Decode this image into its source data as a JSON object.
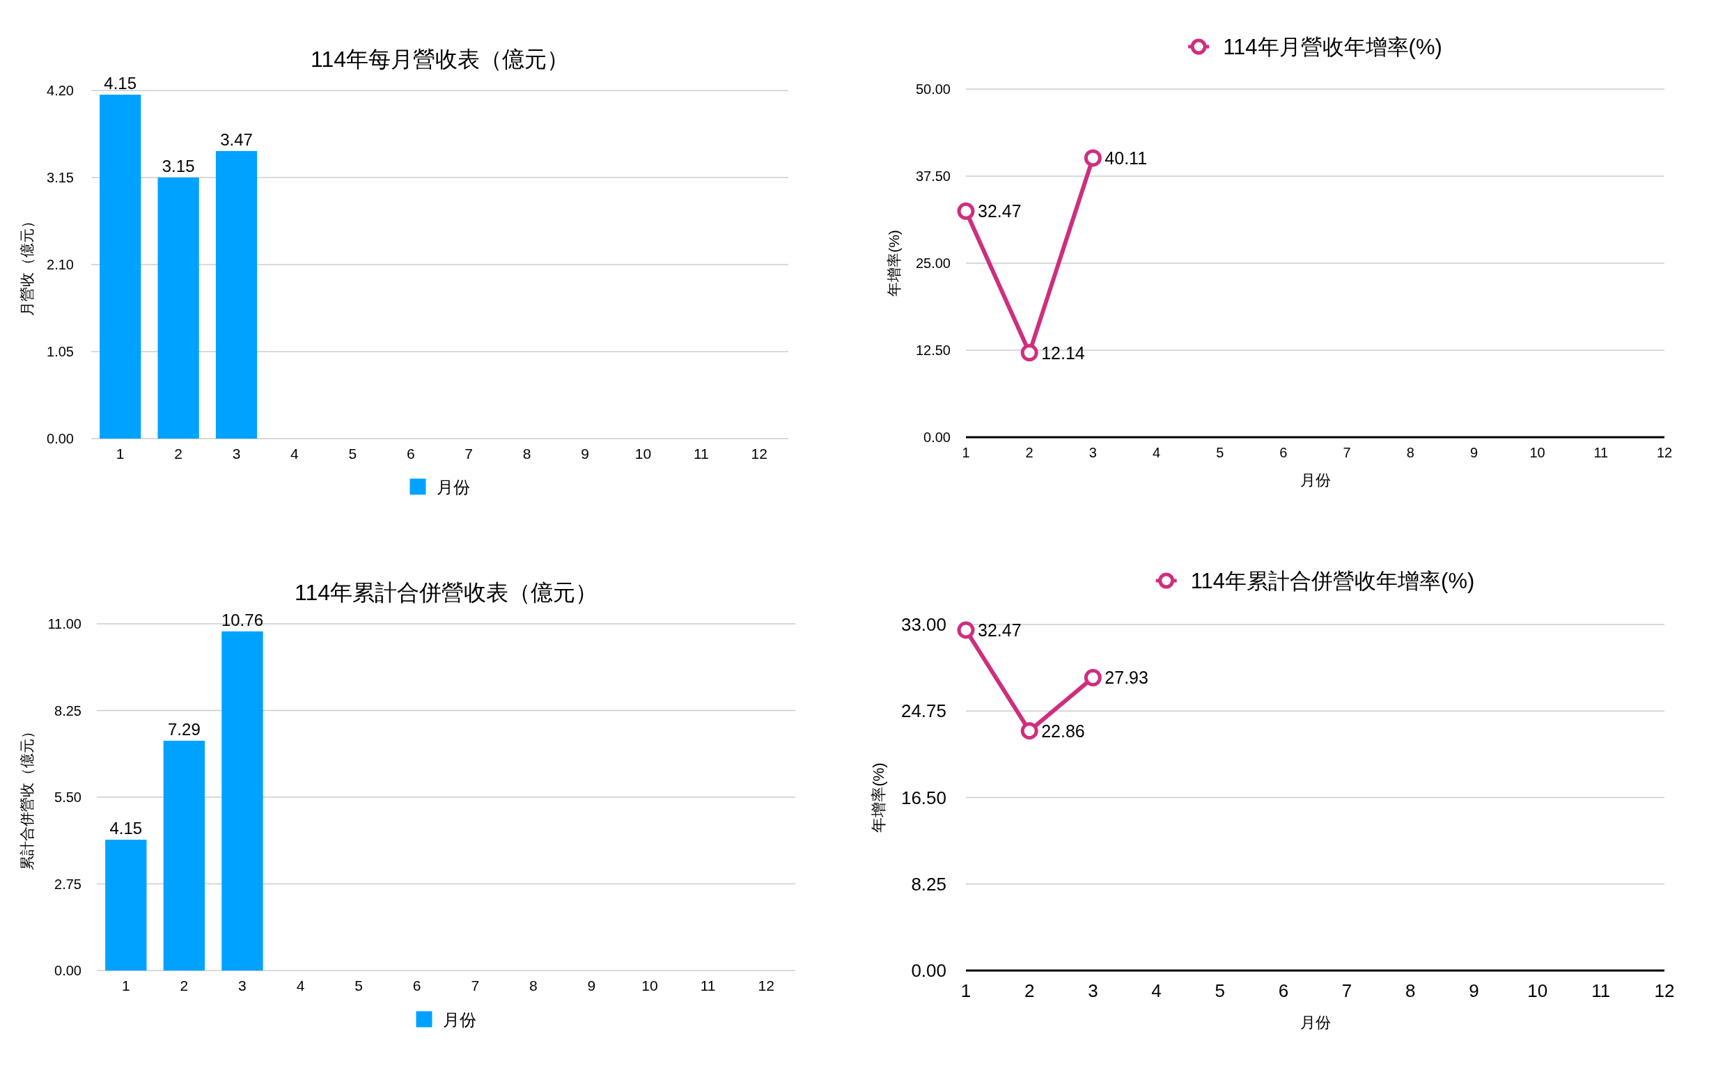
{
  "chart_data": [
    {
      "type": "bar",
      "title": "114年每月營收表（億元）",
      "ylabel": "月營收（億元）",
      "x": [
        1,
        2,
        3
      ],
      "series": [
        {
          "name": "月份",
          "color": "#00a2ff",
          "values": [
            4.15,
            3.15,
            3.47
          ]
        }
      ],
      "xlim": [
        0.5,
        12.5
      ],
      "xticks": [
        1,
        2,
        3,
        4,
        5,
        6,
        7,
        8,
        9,
        10,
        11,
        12
      ],
      "ylim": [
        0,
        4.2
      ],
      "yticks": [
        {
          "value": 0,
          "label": "0.00"
        },
        1.05,
        {
          "value": 2.1,
          "label": "2.10"
        },
        3.15,
        {
          "value": 4.2,
          "label": "4.20"
        }
      ],
      "grid": "y",
      "legend": "bottom",
      "data_labels": true
    },
    {
      "type": "line",
      "xlabel": "月份",
      "ylabel": "年增率(%)",
      "x": [
        1,
        2,
        3
      ],
      "series": [
        {
          "name": "114年月營收年增率(%)",
          "color": "#cf2e7e",
          "values": [
            32.47,
            12.14,
            40.11
          ]
        }
      ],
      "xlim": [
        1,
        12
      ],
      "xticks": [
        1,
        2,
        3,
        4,
        5,
        6,
        7,
        8,
        9,
        10,
        11,
        12
      ],
      "ylim": [
        0,
        50
      ],
      "yticks": [
        {
          "value": 0,
          "label": "0.00"
        },
        {
          "value": 12.5,
          "label": "12.50"
        },
        {
          "value": 25,
          "label": "25.00"
        },
        {
          "value": 37.5,
          "label": "37.50"
        },
        {
          "value": 50,
          "label": "50.00"
        }
      ],
      "grid": "y",
      "legend": "top",
      "marker": "circle",
      "data_labels": true
    },
    {
      "type": "bar",
      "title": "114年累計合併營收表（億元）",
      "ylabel": "累計合併營收（億元）",
      "x": [
        1,
        2,
        3
      ],
      "series": [
        {
          "name": "月份",
          "color": "#00a2ff",
          "values": [
            4.15,
            7.29,
            10.76
          ]
        }
      ],
      "xlim": [
        0.5,
        12.5
      ],
      "xticks": [
        1,
        2,
        3,
        4,
        5,
        6,
        7,
        8,
        9,
        10,
        11,
        12
      ],
      "ylim": [
        0,
        11
      ],
      "yticks": [
        {
          "value": 0,
          "label": "0.00"
        },
        2.75,
        {
          "value": 5.5,
          "label": "5.50"
        },
        8.25,
        {
          "value": 11,
          "label": "11.00"
        }
      ],
      "grid": "y",
      "legend": "bottom",
      "data_labels": true
    },
    {
      "type": "line",
      "xlabel": "月份",
      "ylabel": "年增率(%)",
      "x": [
        1,
        2,
        3
      ],
      "series": [
        {
          "name": "114年累計合併營收年增率(%)",
          "color": "#cf2e7e",
          "values": [
            32.47,
            22.86,
            27.93
          ]
        }
      ],
      "xlim": [
        1,
        12
      ],
      "xticks": [
        1,
        2,
        3,
        4,
        5,
        6,
        7,
        8,
        9,
        10,
        11,
        12
      ],
      "ylim": [
        0,
        33
      ],
      "yticks": [
        {
          "value": 0,
          "label": "0.00"
        },
        8.25,
        {
          "value": 16.5,
          "label": "16.50"
        },
        24.75,
        {
          "value": 33,
          "label": "33.00"
        }
      ],
      "grid": "y",
      "legend": "top",
      "marker": "circle",
      "data_labels": true
    }
  ]
}
